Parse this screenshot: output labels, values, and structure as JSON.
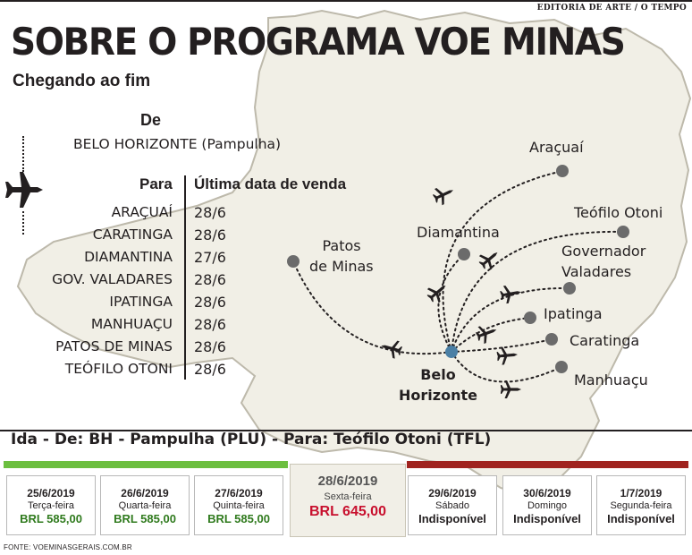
{
  "header": {
    "credit": "EDITORIA DE ARTE / O TEMPO",
    "title": "SOBRE O PROGRAMA VOE MINAS",
    "subtitle": "Chegando ao fim"
  },
  "schedule": {
    "de_label": "De",
    "origin": "BELO HORIZONTE (Pampulha)",
    "para_label": "Para",
    "date_label": "Última data de venda",
    "rows": [
      {
        "city": "ARAÇUAÍ",
        "date": "28/6"
      },
      {
        "city": "CARATINGA",
        "date": "28/6"
      },
      {
        "city": "DIAMANTINA",
        "date": "27/6"
      },
      {
        "city": "GOV. VALADARES",
        "date": "28/6"
      },
      {
        "city": "IPATINGA",
        "date": "28/6"
      },
      {
        "city": "MANHUAÇU",
        "date": "28/6"
      },
      {
        "city": "PATOS DE MINAS",
        "date": "28/6"
      },
      {
        "city": "TEÓFILO OTONI",
        "date": "28/6"
      }
    ]
  },
  "map": {
    "hub": {
      "line1": "Belo",
      "line2": "Horizonte"
    },
    "cities": {
      "aracuai": "Araçuaí",
      "teofilo": "Teófilo  Otoni",
      "governador_1": "Governador",
      "governador_2": "Valadares",
      "diamantina": "Diamantina",
      "patos_1": "Patos",
      "patos_2": "de Minas",
      "ipatinga": "Ipatinga",
      "caratinga": "Caratinga",
      "manhuacu": "Manhuaçu"
    },
    "colors": {
      "land": "#f1efe6",
      "border": "#bdb9ab",
      "hub": "#4a7fa5",
      "city_dot": "#6b6b6b"
    }
  },
  "fares": {
    "route": "Ida - De: BH - Pampulha (PLU) - Para: Teófilo Otoni (TFL)",
    "colors": {
      "available": "#6cbf3f",
      "unavailable": "#a0231f",
      "selected_price": "#c8102e"
    },
    "days": [
      {
        "date": "25/6/2019",
        "weekday": "Terça-feira",
        "price": "BRL 585,00"
      },
      {
        "date": "26/6/2019",
        "weekday": "Quarta-feira",
        "price": "BRL 585,00"
      },
      {
        "date": "27/6/2019",
        "weekday": "Quinta-feira",
        "price": "BRL 585,00"
      },
      {
        "date": "28/6/2019",
        "weekday": "Sexta-feira",
        "price": "BRL 645,00"
      },
      {
        "date": "29/6/2019",
        "weekday": "Sábado",
        "price": "Indisponível"
      },
      {
        "date": "30/6/2019",
        "weekday": "Domingo",
        "price": "Indisponível"
      },
      {
        "date": "1/7/2019",
        "weekday": "Segunda-feira",
        "price": "Indisponível"
      }
    ]
  },
  "footer": {
    "source": "FONTE: VOEMINASGERAIS.COM.BR"
  }
}
